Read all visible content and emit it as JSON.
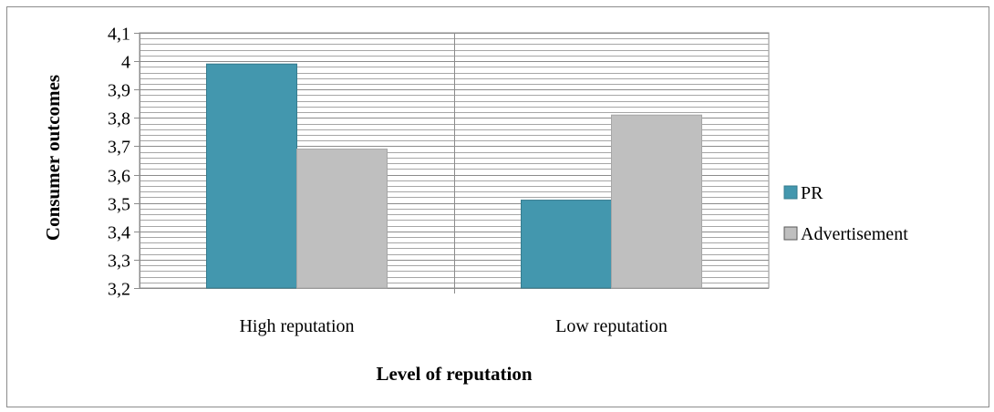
{
  "chart_data": {
    "type": "bar",
    "categories": [
      "High reputation",
      "Low reputation"
    ],
    "series": [
      {
        "name": "PR",
        "values": [
          3.99,
          3.51
        ],
        "color": "#4397ae"
      },
      {
        "name": "Advertisement",
        "values": [
          3.69,
          3.81
        ],
        "color": "#bfbfbf"
      }
    ],
    "ylim": [
      3.2,
      4.1
    ],
    "yticks": [
      "3,2",
      "3,3",
      "3,4",
      "3,5",
      "3,6",
      "3,7",
      "3,8",
      "3,9",
      "4",
      "4,1"
    ],
    "xlabel": "Level of reputation",
    "ylabel": "Consumer outcomes",
    "grid": true,
    "legend_position": "right"
  }
}
